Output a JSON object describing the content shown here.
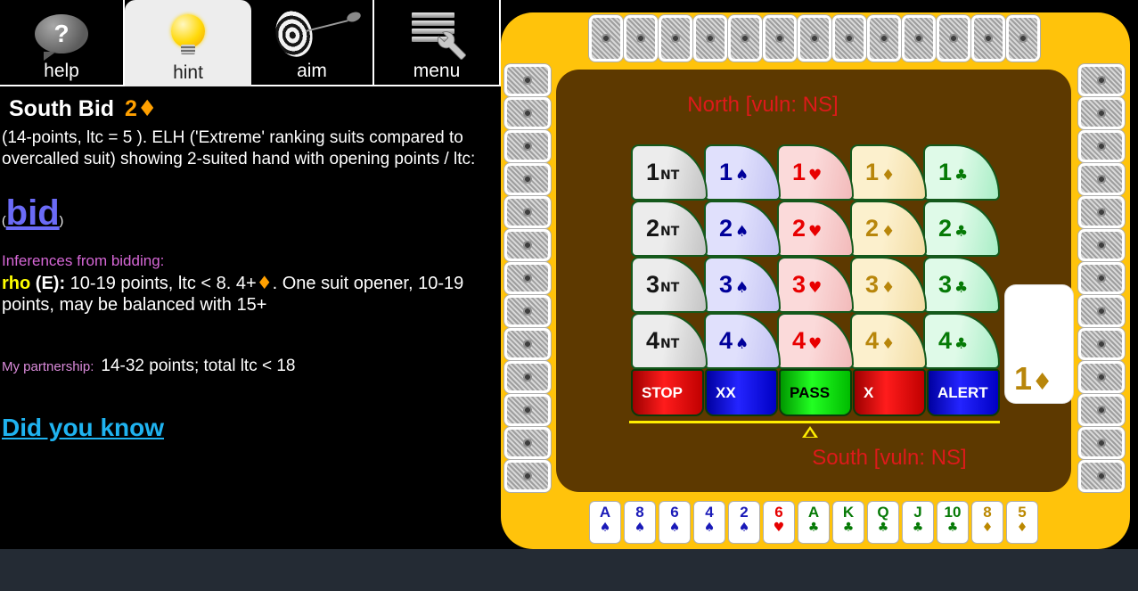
{
  "tabs": [
    {
      "id": "help",
      "label": "help",
      "selected": false
    },
    {
      "id": "hint",
      "label": "hint",
      "selected": true
    },
    {
      "id": "aim",
      "label": "aim",
      "selected": false
    },
    {
      "id": "menu",
      "label": "menu",
      "selected": false
    }
  ],
  "icons": {
    "help_glyph": "?"
  },
  "panel": {
    "title": "South Bid",
    "title_bid_level": "2",
    "title_bid_suit": "♦",
    "description": "(14-points, ltc = 5 ).  ELH ('Extreme' ranking suits compared to overcalled suit) showing 2-suited hand with opening points / ltc:",
    "paren_open": "(",
    "bid_link": "bid",
    "paren_close": ")",
    "inferences_heading": "Inferences from bidding:",
    "rho_label": "rho",
    "rho_seat": "(E):",
    "rho_text_before": "10-19 points, ltc < 8. 4+",
    "rho_suit": "♦",
    "rho_text_after": ". One suit opener, 10-19 points, may be balanced with 15+",
    "partnership_label": "My partnership:",
    "partnership_text": "14-32 points; total ltc < 18",
    "did_you_know": "Did you know"
  },
  "table": {
    "north_label": "North [vuln: NS]",
    "south_label": "South [vuln: NS]",
    "current_bid": {
      "level": "1",
      "suit": "♦",
      "suit_type": "diamond"
    },
    "bid_grid": {
      "levels": [
        "1",
        "2",
        "3",
        "4"
      ],
      "columns": [
        {
          "suit": "NT",
          "type": "nt"
        },
        {
          "suit": "♠",
          "type": "spade"
        },
        {
          "suit": "♥",
          "type": "heart"
        },
        {
          "suit": "♦",
          "type": "diamond"
        },
        {
          "suit": "♣",
          "type": "club"
        }
      ]
    },
    "action_buttons": [
      {
        "label": "STOP",
        "color": "red"
      },
      {
        "label": "XX",
        "color": "blue"
      },
      {
        "label": "PASS",
        "color": "green"
      },
      {
        "label": "X",
        "color": "red"
      },
      {
        "label": "ALERT",
        "color": "blue"
      }
    ],
    "hidden_hands": {
      "north": 13,
      "west": 13,
      "east": 13
    }
  },
  "hand": {
    "cards": [
      {
        "rank": "A",
        "suit": "spade"
      },
      {
        "rank": "8",
        "suit": "spade"
      },
      {
        "rank": "6",
        "suit": "spade"
      },
      {
        "rank": "4",
        "suit": "spade"
      },
      {
        "rank": "2",
        "suit": "spade"
      },
      {
        "rank": "6",
        "suit": "heart"
      },
      {
        "rank": "A",
        "suit": "club"
      },
      {
        "rank": "K",
        "suit": "club"
      },
      {
        "rank": "Q",
        "suit": "club"
      },
      {
        "rank": "J",
        "suit": "club"
      },
      {
        "rank": "10",
        "suit": "club"
      },
      {
        "rank": "8",
        "suit": "diamond"
      },
      {
        "rank": "5",
        "suit": "diamond"
      }
    ],
    "suit_symbols": {
      "spade": "♠",
      "heart": "♥",
      "diamond": "♦",
      "club": "♣"
    }
  },
  "colors": {
    "gold": "#FFC30B",
    "table_brown": "#5D3900",
    "seat_label_red": "#DD1A1A",
    "spade": "#1a1ab8",
    "heart": "#e60000",
    "club": "#067a06",
    "diamond": "#bb8800",
    "accent_orange": "#FFA000",
    "link_blue": "#6b6bf7",
    "link_cyan": "#1fb3f0"
  }
}
